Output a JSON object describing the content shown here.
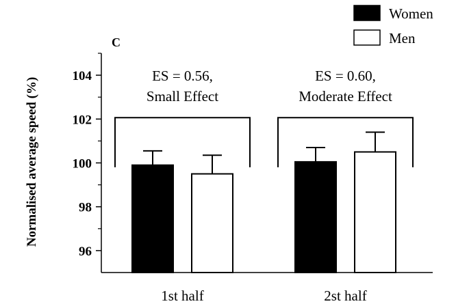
{
  "chart_data": {
    "type": "bar",
    "panel_label": "C",
    "title": "",
    "xlabel": "",
    "ylabel": "Normalised average speed (%)",
    "ylim": [
      95,
      105
    ],
    "yticks": [
      96,
      98,
      100,
      102,
      104
    ],
    "categories": [
      "1st half",
      "2st half"
    ],
    "series": [
      {
        "name": "Women",
        "values": [
          99.9,
          100.05
        ],
        "errors": [
          0.65,
          0.65
        ],
        "fill": "#000000"
      },
      {
        "name": "Men",
        "values": [
          99.5,
          100.5
        ],
        "errors": [
          0.85,
          0.9
        ],
        "fill": "#ffffff"
      }
    ],
    "annotations": [
      {
        "category": "1st half",
        "lines": [
          "ES = 0.56,",
          "Small Effect"
        ],
        "bracket_level": 102.0
      },
      {
        "category": "2st half",
        "lines": [
          "ES = 0.60,",
          "Moderate Effect"
        ],
        "bracket_level": 102.0
      }
    ],
    "legend_position": "top-right",
    "grid": false
  }
}
